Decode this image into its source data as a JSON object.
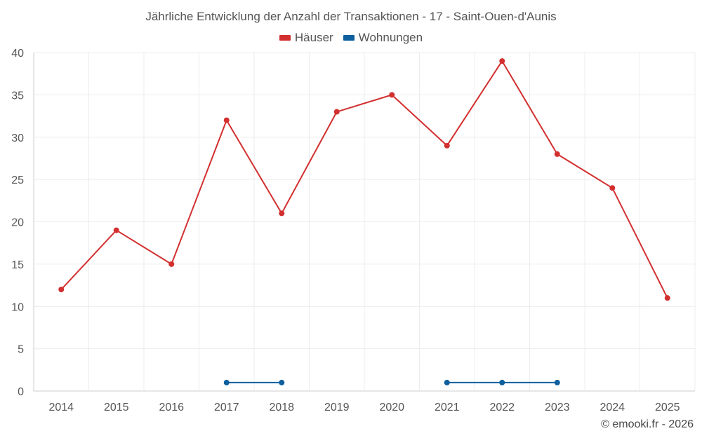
{
  "chart_data": {
    "type": "line",
    "title": "Jährliche Entwicklung der Anzahl der Transaktionen - 17 - Saint-Ouen-d'Aunis",
    "categories": [
      "2014",
      "2015",
      "2016",
      "2017",
      "2018",
      "2019",
      "2020",
      "2021",
      "2022",
      "2023",
      "2024",
      "2025"
    ],
    "ylim": [
      0,
      40
    ],
    "yticks": [
      0,
      5,
      10,
      15,
      20,
      25,
      30,
      35,
      40
    ],
    "xlabel": "",
    "ylabel": "",
    "grid": true,
    "legend_position": "top-center",
    "series": [
      {
        "name": "Häuser",
        "color": "#d32f2f",
        "values": [
          12,
          19,
          15,
          32,
          21,
          33,
          35,
          29,
          39,
          28,
          24,
          11
        ]
      },
      {
        "name": "Wohnungen",
        "color": "#0d5f9e",
        "values": [
          null,
          null,
          null,
          1,
          1,
          null,
          null,
          1,
          1,
          1,
          null,
          null
        ]
      }
    ]
  },
  "footer": {
    "copyright": "© emooki.fr - 2026"
  }
}
